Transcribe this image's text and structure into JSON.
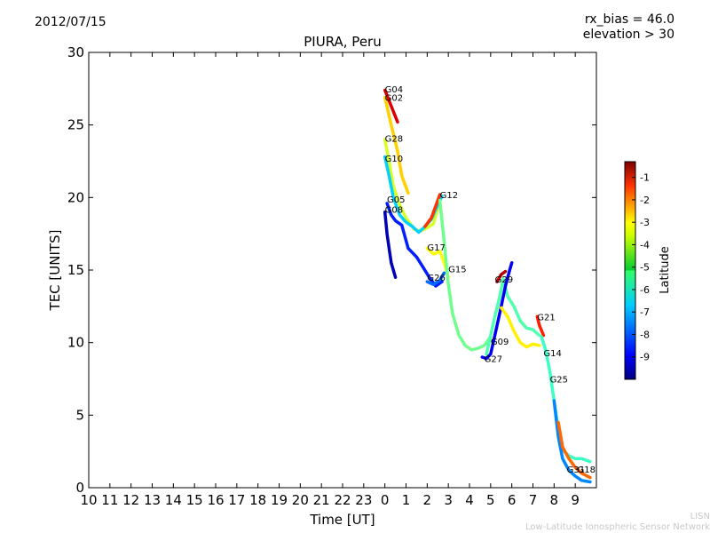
{
  "header": {
    "date": "2012/07/15",
    "rx_bias": "rx_bias = 46.0",
    "elevation": "elevation > 30"
  },
  "footer": {
    "line1": "LISN",
    "line2": "Low-Latitude Ionospheric Sensor Network"
  },
  "chart_data": {
    "type": "line",
    "title": "PIURA, Peru",
    "xlabel": "Time [UT]",
    "ylabel": "TEC [UNITS]",
    "xticks": [
      "10",
      "11",
      "12",
      "13",
      "14",
      "15",
      "16",
      "17",
      "18",
      "19",
      "20",
      "21",
      "22",
      "23",
      "0",
      "1",
      "2",
      "3",
      "4",
      "5",
      "6",
      "7",
      "8",
      "9"
    ],
    "xlim": [
      10,
      34
    ],
    "ylim": [
      0,
      30
    ],
    "yticks": [
      0,
      5,
      10,
      15,
      20,
      25,
      30
    ],
    "grid": false,
    "colorbar": {
      "label": "Latitude",
      "range": [
        -10,
        -0.3
      ],
      "ticks": [
        -1,
        -2,
        -3,
        -4,
        -5,
        -6,
        -7,
        -8,
        -9
      ]
    },
    "series": [
      {
        "name": "G04",
        "lat": -1.2,
        "points": [
          [
            24.0,
            27.4
          ],
          [
            24.3,
            26.3
          ],
          [
            24.6,
            25.2
          ]
        ]
      },
      {
        "name": "G02",
        "lat": -3.5,
        "points": [
          [
            24.0,
            26.9
          ],
          [
            24.3,
            25.0
          ],
          [
            24.6,
            23.2
          ],
          [
            24.8,
            21.5
          ],
          [
            25.1,
            20.3
          ]
        ]
      },
      {
        "name": "G28",
        "lat": -4.3,
        "points": [
          [
            24.0,
            24.0
          ],
          [
            24.2,
            22.5
          ],
          [
            24.4,
            20.8
          ],
          [
            24.7,
            19.5
          ],
          [
            25.0,
            18.6
          ],
          [
            25.4,
            17.8
          ],
          [
            25.7,
            17.7
          ],
          [
            26.0,
            17.9
          ],
          [
            26.3,
            18.2
          ],
          [
            26.6,
            19.8
          ]
        ]
      },
      {
        "name": "G10",
        "lat": -6.8,
        "points": [
          [
            24.0,
            22.8
          ],
          [
            24.2,
            21.5
          ],
          [
            24.4,
            20.0
          ],
          [
            24.7,
            18.8
          ],
          [
            25.0,
            18.3
          ],
          [
            25.3,
            18.0
          ],
          [
            25.6,
            17.6
          ],
          [
            25.9,
            18.0
          ],
          [
            26.2,
            18.5
          ],
          [
            26.5,
            19.5
          ],
          [
            26.7,
            20.1
          ]
        ]
      },
      {
        "name": "G12",
        "lat": -2.0,
        "points": [
          [
            25.9,
            18.0
          ],
          [
            26.2,
            18.6
          ],
          [
            26.4,
            19.4
          ],
          [
            26.6,
            20.2
          ]
        ]
      },
      {
        "name": "G05",
        "lat": -8.5,
        "points": [
          [
            24.1,
            19.6
          ],
          [
            24.3,
            18.8
          ],
          [
            24.5,
            18.4
          ],
          [
            24.8,
            18.1
          ],
          [
            25.1,
            16.5
          ],
          [
            25.5,
            15.9
          ],
          [
            25.8,
            15.2
          ],
          [
            26.1,
            14.5
          ],
          [
            26.4,
            13.9
          ],
          [
            26.7,
            14.2
          ]
        ]
      },
      {
        "name": "G08",
        "lat": -9.5,
        "points": [
          [
            24.0,
            19.0
          ],
          [
            24.1,
            17.5
          ],
          [
            24.2,
            16.5
          ],
          [
            24.3,
            15.5
          ],
          [
            24.5,
            14.5
          ]
        ]
      },
      {
        "name": "G17",
        "lat": -4.0,
        "points": [
          [
            26.0,
            16.5
          ],
          [
            26.3,
            16.1
          ],
          [
            26.6,
            16.3
          ],
          [
            26.8,
            15.5
          ],
          [
            27.0,
            14.5
          ]
        ]
      },
      {
        "name": "G26",
        "lat": -7.8,
        "points": [
          [
            26.0,
            14.2
          ],
          [
            26.3,
            14.0
          ],
          [
            26.6,
            14.3
          ],
          [
            26.8,
            14.8
          ]
        ]
      },
      {
        "name": "G15",
        "lat": -5.3,
        "points": [
          [
            26.6,
            19.8
          ],
          [
            26.8,
            17.0
          ],
          [
            27.0,
            14.0
          ],
          [
            27.2,
            12.0
          ],
          [
            27.5,
            10.5
          ],
          [
            27.8,
            9.8
          ],
          [
            28.1,
            9.5
          ],
          [
            28.4,
            9.6
          ],
          [
            28.7,
            9.8
          ],
          [
            29.0,
            10.4
          ]
        ]
      },
      {
        "name": "G29",
        "lat": -0.8,
        "points": [
          [
            29.3,
            14.2
          ],
          [
            29.5,
            14.7
          ],
          [
            29.7,
            14.9
          ]
        ]
      },
      {
        "name": "G09",
        "lat": -5.6,
        "points": [
          [
            28.8,
            9.2
          ],
          [
            29.0,
            10.5
          ],
          [
            29.2,
            11.8
          ],
          [
            29.4,
            13.0
          ],
          [
            29.6,
            14.4
          ],
          [
            29.8,
            13.2
          ],
          [
            30.1,
            12.5
          ],
          [
            30.4,
            11.5
          ],
          [
            30.7,
            11.0
          ],
          [
            31.0,
            10.9
          ],
          [
            31.3,
            10.5
          ]
        ]
      },
      {
        "name": "G27",
        "lat": -8.9,
        "points": [
          [
            28.6,
            9.0
          ],
          [
            28.8,
            8.9
          ],
          [
            29.0,
            9.2
          ],
          [
            29.2,
            10.5
          ],
          [
            29.5,
            12.5
          ],
          [
            29.7,
            13.9
          ],
          [
            29.9,
            15.0
          ],
          [
            30.0,
            15.5
          ]
        ]
      },
      {
        "name": "G21",
        "lat": -1.8,
        "points": [
          [
            31.2,
            11.8
          ],
          [
            31.3,
            11.2
          ],
          [
            31.5,
            10.5
          ]
        ]
      },
      {
        "name": "G14",
        "lat": -3.8,
        "points": [
          [
            29.5,
            12.4
          ],
          [
            29.8,
            11.8
          ],
          [
            30.1,
            10.8
          ],
          [
            30.4,
            10.0
          ],
          [
            30.7,
            9.7
          ],
          [
            31.0,
            9.9
          ],
          [
            31.3,
            9.8
          ]
        ]
      },
      {
        "name": "G25",
        "lat": -5.8,
        "points": [
          [
            31.4,
            10.4
          ],
          [
            31.6,
            9.5
          ],
          [
            31.8,
            8.0
          ],
          [
            32.0,
            6.0
          ],
          [
            32.2,
            4.0
          ],
          [
            32.4,
            2.6
          ],
          [
            32.7,
            2.2
          ],
          [
            33.0,
            2.0
          ],
          [
            33.3,
            2.0
          ],
          [
            33.7,
            1.8
          ]
        ]
      },
      {
        "name": "G31",
        "lat": -7.5,
        "points": [
          [
            32.0,
            6.0
          ],
          [
            32.2,
            3.5
          ],
          [
            32.4,
            2.0
          ],
          [
            32.7,
            1.2
          ],
          [
            33.0,
            0.8
          ],
          [
            33.3,
            0.5
          ],
          [
            33.7,
            0.4
          ]
        ]
      },
      {
        "name": "G18",
        "lat": -2.5,
        "points": [
          [
            32.2,
            4.5
          ],
          [
            32.4,
            2.8
          ],
          [
            32.7,
            2.0
          ],
          [
            33.0,
            1.4
          ],
          [
            33.3,
            1.0
          ],
          [
            33.7,
            0.7
          ]
        ]
      }
    ],
    "labels": [
      {
        "text": "G04",
        "x": 24.0,
        "y": 27.5
      },
      {
        "text": "G02",
        "x": 24.0,
        "y": 26.9
      },
      {
        "text": "G28",
        "x": 24.0,
        "y": 24.1
      },
      {
        "text": "G10",
        "x": 24.0,
        "y": 22.7
      },
      {
        "text": "G12",
        "x": 26.6,
        "y": 20.2
      },
      {
        "text": "G05",
        "x": 24.1,
        "y": 19.9
      },
      {
        "text": "G08",
        "x": 24.0,
        "y": 19.2
      },
      {
        "text": "G17",
        "x": 26.0,
        "y": 16.6
      },
      {
        "text": "G15",
        "x": 27.0,
        "y": 15.1
      },
      {
        "text": "G26",
        "x": 26.0,
        "y": 14.5
      },
      {
        "text": "G29",
        "x": 29.2,
        "y": 14.4
      },
      {
        "text": "G21",
        "x": 31.2,
        "y": 11.8
      },
      {
        "text": "G09",
        "x": 29.0,
        "y": 10.1
      },
      {
        "text": "G14",
        "x": 31.5,
        "y": 9.3
      },
      {
        "text": "G27",
        "x": 28.7,
        "y": 8.9
      },
      {
        "text": "G25",
        "x": 31.8,
        "y": 7.5
      },
      {
        "text": "G31",
        "x": 32.6,
        "y": 1.3
      },
      {
        "text": "G18",
        "x": 33.1,
        "y": 1.3
      }
    ]
  }
}
